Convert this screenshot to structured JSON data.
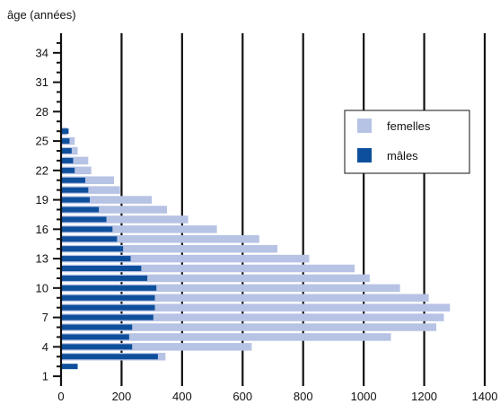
{
  "chart_data": {
    "type": "bar",
    "orientation": "horizontal",
    "ylabel": "âge (années)",
    "xlabel": "",
    "xlim": [
      0,
      1400
    ],
    "ylim": [
      0,
      36
    ],
    "x_ticks": [
      0,
      200,
      400,
      600,
      800,
      1000,
      1200,
      1400
    ],
    "y_ticks": [
      1,
      4,
      7,
      10,
      13,
      16,
      19,
      22,
      25,
      28,
      31,
      34
    ],
    "grid": "vertical",
    "legend_position": "top-right",
    "colors": {
      "femelles": "#b7c3e4",
      "males": "#0e4f9c",
      "grid": "#111111"
    },
    "series": [
      {
        "name": "femelles",
        "color_key": "femelles",
        "ages": [
          3,
          4,
          5,
          6,
          7,
          8,
          9,
          10,
          11,
          12,
          13,
          14,
          15,
          16,
          17,
          18,
          19,
          20,
          21,
          22,
          23,
          24,
          25,
          26
        ],
        "values": [
          345,
          630,
          1090,
          1240,
          1265,
          1285,
          1215,
          1120,
          1020,
          970,
          820,
          715,
          655,
          515,
          420,
          350,
          300,
          195,
          175,
          100,
          90,
          55,
          45,
          20
        ]
      },
      {
        "name": "mâles",
        "color_key": "males",
        "ages": [
          2,
          3,
          4,
          5,
          6,
          7,
          8,
          9,
          10,
          11,
          12,
          13,
          14,
          15,
          16,
          17,
          18,
          19,
          20,
          21,
          22,
          23,
          24,
          25,
          26
        ],
        "values": [
          55,
          320,
          235,
          225,
          235,
          305,
          310,
          310,
          315,
          285,
          265,
          230,
          205,
          185,
          170,
          150,
          125,
          95,
          90,
          80,
          45,
          40,
          35,
          28,
          25
        ]
      }
    ]
  }
}
